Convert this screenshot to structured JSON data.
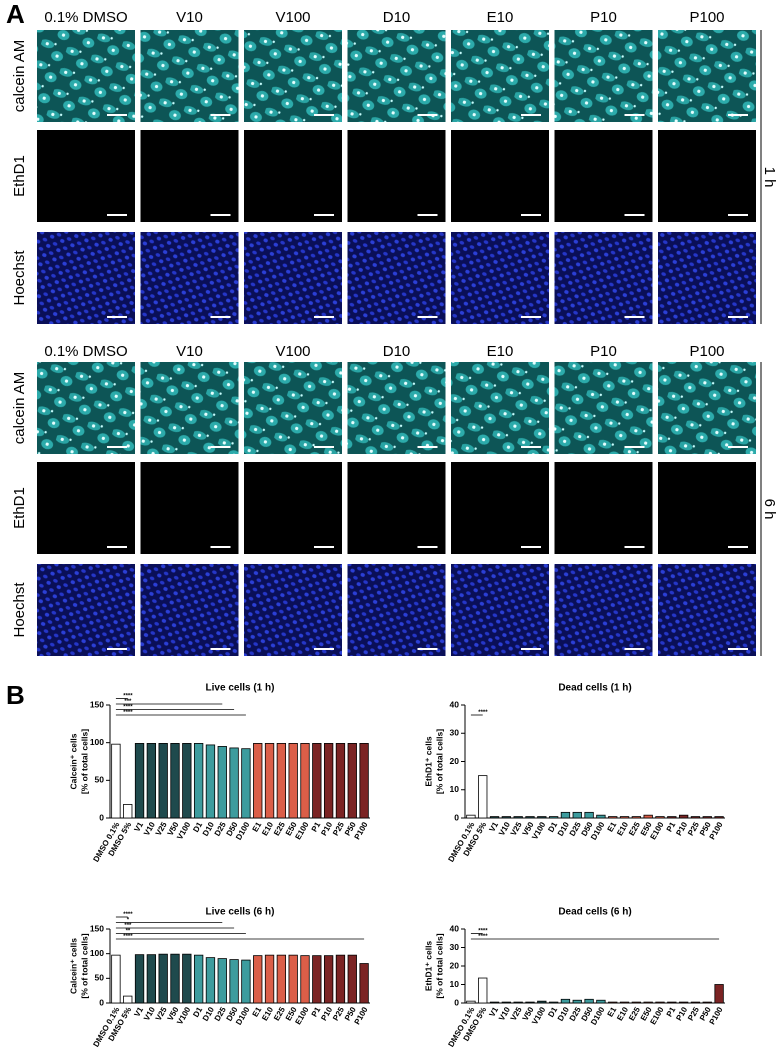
{
  "panel_a": {
    "label": "A",
    "groups": [
      {
        "time": "1 h",
        "columns": [
          "0.1% DMSO",
          "V10",
          "V100",
          "D10",
          "E10",
          "P10",
          "P100"
        ],
        "rows": [
          "calcein AM",
          "EthD1",
          "Hoechst"
        ]
      },
      {
        "time": "6 h",
        "columns": [
          "0.1% DMSO",
          "V10",
          "V100",
          "D10",
          "E10",
          "P10",
          "P100"
        ],
        "rows": [
          "calcein AM",
          "EthD1",
          "Hoechst"
        ]
      }
    ]
  },
  "panel_b": {
    "label": "B"
  },
  "chart_data": [
    {
      "type": "bar",
      "title": "Live cells (1 h)",
      "ylabel": [
        "Calcein⁺ cells",
        "[% of total cells]"
      ],
      "categories": [
        "DMSO 0.1%",
        "DMSO 5%",
        "V1",
        "V10",
        "V25",
        "V50",
        "V100",
        "D1",
        "D10",
        "D25",
        "D50",
        "D100",
        "E1",
        "E10",
        "E25",
        "E50",
        "E100",
        "P1",
        "P10",
        "P25",
        "P50",
        "P100"
      ],
      "values": [
        98,
        18,
        99,
        99,
        99,
        99,
        99,
        99,
        97,
        95,
        93,
        92,
        99,
        99,
        99,
        99,
        99,
        99,
        99,
        99,
        99,
        99
      ],
      "colors": [
        "#ffffff",
        "#ffffff",
        "#1f4a4d",
        "#1f4a4d",
        "#1f4a4d",
        "#1f4a4d",
        "#1f4a4d",
        "#3d9c9e",
        "#3d9c9e",
        "#3d9c9e",
        "#3d9c9e",
        "#3d9c9e",
        "#db5e48",
        "#db5e48",
        "#db5e48",
        "#db5e48",
        "#db5e48",
        "#7b2424",
        "#7b2424",
        "#7b2424",
        "#7b2424",
        "#7b2424"
      ],
      "ylim": [
        0,
        150
      ],
      "yticks": [
        0,
        50,
        100,
        150
      ],
      "annotations": [
        {
          "text": "****",
          "from": "DMSO 0.1%",
          "to": "DMSO 5%"
        },
        {
          "text": "***",
          "from": "DMSO 0.1%",
          "to": "D25"
        },
        {
          "text": "****",
          "from": "DMSO 0.1%",
          "to": "D50"
        },
        {
          "text": "****",
          "from": "DMSO 0.1%",
          "to": "D100"
        }
      ]
    },
    {
      "type": "bar",
      "title": "Dead cells (1 h)",
      "ylabel": [
        "EthD1⁺ cells",
        "[% of total cells]"
      ],
      "categories": [
        "DMSO 0.1%",
        "DMSO 5%",
        "V1",
        "V10",
        "V25",
        "V50",
        "V100",
        "D1",
        "D10",
        "D25",
        "D50",
        "D100",
        "E1",
        "E10",
        "E25",
        "E50",
        "E100",
        "P1",
        "P10",
        "P25",
        "P50",
        "P100"
      ],
      "values": [
        1,
        15,
        0.5,
        0.5,
        0.5,
        0.5,
        0.5,
        0.5,
        2,
        2,
        2,
        1,
        0.5,
        0.5,
        0.5,
        1,
        0.5,
        0.5,
        1,
        0.5,
        0.5,
        0.5
      ],
      "colors": [
        "#ffffff",
        "#ffffff",
        "#1f4a4d",
        "#1f4a4d",
        "#1f4a4d",
        "#1f4a4d",
        "#1f4a4d",
        "#3d9c9e",
        "#3d9c9e",
        "#3d9c9e",
        "#3d9c9e",
        "#3d9c9e",
        "#db5e48",
        "#db5e48",
        "#db5e48",
        "#db5e48",
        "#db5e48",
        "#7b2424",
        "#7b2424",
        "#7b2424",
        "#7b2424",
        "#7b2424"
      ],
      "ylim": [
        0,
        40
      ],
      "yticks": [
        0,
        10,
        20,
        30,
        40
      ],
      "annotations": [
        {
          "text": "****",
          "from": "DMSO 0.1%",
          "to": "DMSO 5%"
        }
      ]
    },
    {
      "type": "bar",
      "title": "Live cells (6 h)",
      "ylabel": [
        "Calcein⁺ cells",
        "[% of total cells]"
      ],
      "categories": [
        "DMSO 0.1%",
        "DMSO 5%",
        "V1",
        "V10",
        "V25",
        "V50",
        "V100",
        "D1",
        "D10",
        "D25",
        "D50",
        "D100",
        "E1",
        "E10",
        "E25",
        "E50",
        "E100",
        "P1",
        "P10",
        "P25",
        "P50",
        "P100"
      ],
      "values": [
        97,
        14,
        98,
        98,
        99,
        99,
        99,
        97,
        92,
        90,
        88,
        87,
        96,
        97,
        97,
        97,
        96,
        96,
        96,
        97,
        97,
        80
      ],
      "colors": [
        "#ffffff",
        "#ffffff",
        "#1f4a4d",
        "#1f4a4d",
        "#1f4a4d",
        "#1f4a4d",
        "#1f4a4d",
        "#3d9c9e",
        "#3d9c9e",
        "#3d9c9e",
        "#3d9c9e",
        "#3d9c9e",
        "#db5e48",
        "#db5e48",
        "#db5e48",
        "#db5e48",
        "#db5e48",
        "#7b2424",
        "#7b2424",
        "#7b2424",
        "#7b2424",
        "#7b2424"
      ],
      "ylim": [
        0,
        150
      ],
      "yticks": [
        0,
        50,
        100,
        150
      ],
      "annotations": [
        {
          "text": "****",
          "from": "DMSO 0.1%",
          "to": "DMSO 5%"
        },
        {
          "text": "*",
          "from": "DMSO 0.1%",
          "to": "D25"
        },
        {
          "text": "***",
          "from": "DMSO 0.1%",
          "to": "D50"
        },
        {
          "text": "**",
          "from": "DMSO 0.1%",
          "to": "D100"
        },
        {
          "text": "****",
          "from": "DMSO 0.1%",
          "to": "P100"
        }
      ]
    },
    {
      "type": "bar",
      "title": "Dead cells (6 h)",
      "ylabel": [
        "EthD1⁺ cells",
        "[% of total cells]"
      ],
      "categories": [
        "DMSO 0.1%",
        "DMSO 5%",
        "V1",
        "V10",
        "V25",
        "V50",
        "V100",
        "D1",
        "D10",
        "D25",
        "D50",
        "D100",
        "E1",
        "E10",
        "E25",
        "E50",
        "E100",
        "P1",
        "P10",
        "P25",
        "P50",
        "P100"
      ],
      "values": [
        1,
        13.5,
        0.5,
        0.5,
        0.5,
        0.5,
        1,
        0.5,
        2,
        1.5,
        2,
        1.5,
        0.5,
        0.5,
        0.5,
        0.5,
        0.5,
        0.5,
        0.5,
        0.5,
        0.5,
        10
      ],
      "colors": [
        "#ffffff",
        "#ffffff",
        "#1f4a4d",
        "#1f4a4d",
        "#1f4a4d",
        "#1f4a4d",
        "#1f4a4d",
        "#3d9c9e",
        "#3d9c9e",
        "#3d9c9e",
        "#3d9c9e",
        "#3d9c9e",
        "#db5e48",
        "#db5e48",
        "#db5e48",
        "#db5e48",
        "#db5e48",
        "#7b2424",
        "#7b2424",
        "#7b2424",
        "#7b2424",
        "#7b2424"
      ],
      "ylim": [
        0,
        40
      ],
      "yticks": [
        0,
        10,
        20,
        30,
        40
      ],
      "annotations": [
        {
          "text": "****",
          "from": "DMSO 0.1%",
          "to": "DMSO 5%"
        },
        {
          "text": "****",
          "from": "DMSO 0.1%",
          "to": "P100"
        }
      ]
    }
  ]
}
